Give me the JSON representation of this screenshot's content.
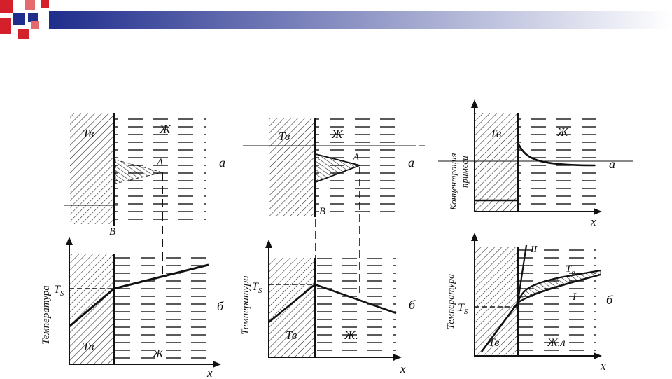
{
  "colors": {
    "ink": "#111111",
    "banner_dark": "#1f2d8c",
    "banner_light": "#ffffff",
    "square_red": "#d4202a"
  },
  "panel1": {
    "solid": "Тв",
    "liquid": "Ж",
    "point_a": "A",
    "point_b": "B",
    "letter_top": "а",
    "letter_bottom": "б",
    "solid_bottom": "Тв",
    "liquid_bottom": "Ж",
    "ylabel": "Температура",
    "ts": "T",
    "ts_sub": "S",
    "x": "x"
  },
  "panel2": {
    "solid": "Тв",
    "liquid": "Ж",
    "point_a": "A",
    "point_b": "B",
    "letter_top": "а",
    "letter_bottom": "б",
    "solid_bottom": "Тв",
    "liquid_bottom": "Ж.",
    "ylabel": "Температура",
    "ts": "T",
    "ts_sub": "S",
    "x": "x"
  },
  "panel3": {
    "solid": "Тв",
    "liquid": "Ж",
    "letter_top": "а",
    "letter_bottom": "б",
    "ylabel_top_1": "Концентрация",
    "ylabel_top_2": "примеси",
    "x_top": "x",
    "curve_2": "II",
    "curve_1": "I",
    "t0": "T",
    "t0_sub": "o",
    "ylabel": "Температура",
    "ts": "T",
    "ts_sub": "S",
    "solid_bottom": "Тв",
    "liquid_bottom": "Ж.л",
    "x": "x"
  }
}
